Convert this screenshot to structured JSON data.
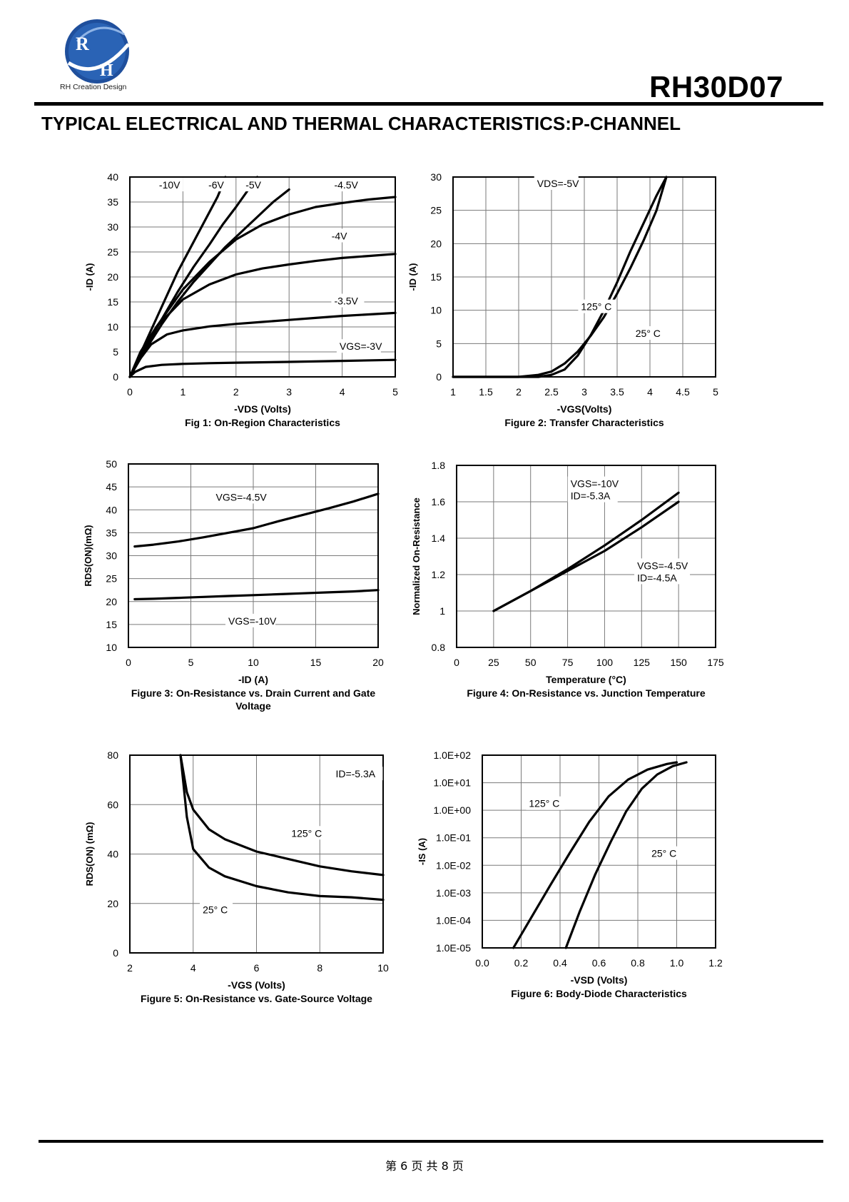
{
  "header": {
    "logo_text": "RH",
    "logo_caption": "RH Creation Design",
    "part_number": "RH30D07",
    "section_title": "TYPICAL ELECTRICAL AND THERMAL CHARACTERISTICS:P-CHANNEL"
  },
  "footer": {
    "page_text": "第 6 页 共 8 页"
  },
  "chart_data": [
    {
      "id": "fig1",
      "type": "line",
      "title": "Fig 1: On-Region Characteristics",
      "xlabel": "-VDS (Volts)",
      "ylabel": "-ID (A)",
      "xlim": [
        0,
        5
      ],
      "ylim": [
        0,
        40
      ],
      "xticks": [
        0,
        1,
        2,
        3,
        4,
        5
      ],
      "yticks": [
        0,
        5,
        10,
        15,
        20,
        25,
        30,
        35,
        40
      ],
      "grid": true,
      "series": [
        {
          "name": "-10V",
          "x": [
            0,
            0.3,
            0.6,
            0.9,
            1.2,
            1.45,
            1.65,
            1.75,
            1.8
          ],
          "y": [
            0,
            7,
            14,
            21,
            27,
            32,
            36,
            38.5,
            40
          ]
        },
        {
          "name": "-6V",
          "x": [
            0,
            0.3,
            0.6,
            0.9,
            1.2,
            1.5,
            1.75,
            2.0,
            2.2,
            2.4
          ],
          "y": [
            0,
            6,
            11.5,
            17,
            22,
            26.5,
            30.5,
            34,
            37,
            40
          ]
        },
        {
          "name": "-5V",
          "x": [
            0,
            0.3,
            0.6,
            0.9,
            1.2,
            1.5,
            1.8,
            2.1,
            2.4,
            2.7,
            3.0
          ],
          "y": [
            0,
            5.5,
            10.5,
            15,
            19,
            22.5,
            26,
            29,
            32,
            35,
            37.5
          ]
        },
        {
          "name": "-4.5V",
          "x": [
            0,
            0.2,
            0.5,
            0.8,
            1.0,
            1.5,
            2.0,
            2.5,
            3.0,
            3.5,
            4.0,
            4.5,
            5.0
          ],
          "y": [
            0,
            5,
            10,
            14.5,
            17.5,
            23,
            27.5,
            30.5,
            32.5,
            34,
            34.8,
            35.5,
            36
          ]
        },
        {
          "name": "-4V",
          "x": [
            0,
            0.2,
            0.5,
            1.0,
            1.5,
            2.0,
            2.5,
            3.0,
            3.5,
            4.0,
            4.5,
            5.0
          ],
          "y": [
            0,
            4.5,
            10,
            15.5,
            18.5,
            20.5,
            21.7,
            22.5,
            23.2,
            23.8,
            24.2,
            24.6
          ]
        },
        {
          "name": "-3.5V",
          "x": [
            0,
            0.15,
            0.4,
            0.7,
            1.0,
            1.5,
            2.0,
            2.5,
            3.0,
            3.5,
            4.0,
            4.5,
            5.0
          ],
          "y": [
            0,
            3,
            6.5,
            8.5,
            9.3,
            10.1,
            10.6,
            11,
            11.4,
            11.8,
            12.2,
            12.5,
            12.8
          ]
        },
        {
          "name": "VGS=-3V",
          "x": [
            0,
            0.1,
            0.3,
            0.6,
            1.0,
            1.5,
            2.0,
            3.0,
            4.0,
            5.0
          ],
          "y": [
            0,
            1,
            2,
            2.4,
            2.6,
            2.75,
            2.85,
            3.0,
            3.2,
            3.4
          ]
        }
      ]
    },
    {
      "id": "fig2",
      "type": "line",
      "title": "Figure 2: Transfer Characteristics",
      "xlabel": "-VGS(Volts)",
      "ylabel": "-ID (A)",
      "xlim": [
        1,
        5
      ],
      "ylim": [
        0,
        30
      ],
      "xticks": [
        1,
        1.5,
        2,
        2.5,
        3,
        3.5,
        4,
        4.5,
        5
      ],
      "yticks": [
        0,
        5,
        10,
        15,
        20,
        25,
        30
      ],
      "grid": true,
      "annotation": "VDS=-5V",
      "series": [
        {
          "name": "125° C",
          "x": [
            1,
            2,
            2.3,
            2.5,
            2.7,
            2.9,
            3.1,
            3.3,
            3.5,
            3.7,
            3.9,
            4.1,
            4.25
          ],
          "y": [
            0,
            0,
            0.3,
            0.8,
            2,
            3.8,
            6.2,
            9,
            12.5,
            16.3,
            20.4,
            25,
            30
          ]
        },
        {
          "name": "25° C",
          "x": [
            1,
            2.3,
            2.5,
            2.7,
            2.9,
            3.1,
            3.3,
            3.5,
            3.7,
            3.9,
            4.1,
            4.25
          ],
          "y": [
            0,
            0,
            0.3,
            1.1,
            3.2,
            6.3,
            10,
            14.2,
            18.8,
            23,
            27.2,
            30
          ]
        }
      ]
    },
    {
      "id": "fig3",
      "type": "line",
      "title": "Figure 3: On-Resistance vs. Drain Current and Gate Voltage",
      "xlabel": "-ID (A)",
      "ylabel": "RDS(ON)(mΩ)",
      "xlim": [
        0,
        20
      ],
      "ylim": [
        10,
        50
      ],
      "xticks": [
        0,
        5,
        10,
        15,
        20
      ],
      "yticks": [
        10,
        15,
        20,
        25,
        30,
        35,
        40,
        45,
        50
      ],
      "grid": true,
      "series": [
        {
          "name": "VGS=-4.5V",
          "x": [
            0.5,
            2,
            4,
            6,
            8,
            10,
            12,
            14,
            16,
            18,
            20
          ],
          "y": [
            32,
            32.4,
            33.1,
            34,
            35,
            36,
            37.5,
            38.9,
            40.3,
            41.8,
            43.5
          ]
        },
        {
          "name": "VGS=-10V",
          "x": [
            0.5,
            2,
            4,
            6,
            8,
            10,
            12,
            14,
            16,
            18,
            20
          ],
          "y": [
            20.5,
            20.6,
            20.8,
            21,
            21.2,
            21.4,
            21.6,
            21.8,
            22,
            22.2,
            22.5
          ]
        }
      ]
    },
    {
      "id": "fig4",
      "type": "line",
      "title": "Figure 4: On-Resistance vs. Junction Temperature",
      "xlabel": "Temperature (°C)",
      "ylabel": "Normalized On-Resistance",
      "xlim": [
        0,
        175
      ],
      "ylim": [
        0.8,
        1.8
      ],
      "xticks": [
        0,
        25,
        50,
        75,
        100,
        125,
        150,
        175
      ],
      "yticks": [
        0.8,
        1,
        1.2,
        1.4,
        1.6,
        1.8
      ],
      "grid": true,
      "series": [
        {
          "name": "VGS=-10V ID=-5.3A",
          "x": [
            25,
            50,
            75,
            100,
            125,
            150
          ],
          "y": [
            1,
            1.11,
            1.23,
            1.36,
            1.5,
            1.65
          ]
        },
        {
          "name": "VGS=-4.5V ID=-4.5A",
          "x": [
            25,
            50,
            75,
            100,
            125,
            150
          ],
          "y": [
            1,
            1.11,
            1.22,
            1.33,
            1.46,
            1.6
          ]
        }
      ]
    },
    {
      "id": "fig5",
      "type": "line",
      "title": "Figure 5: On-Resistance vs. Gate-Source Voltage",
      "xlabel": "-VGS (Volts)",
      "ylabel": "RDS(ON) (mΩ)",
      "xlim": [
        2,
        10
      ],
      "ylim": [
        0,
        80
      ],
      "xticks": [
        2,
        4,
        6,
        8,
        10
      ],
      "yticks": [
        0,
        20,
        40,
        60,
        80
      ],
      "grid": true,
      "annotation": "ID=-5.3A",
      "series": [
        {
          "name": "125° C",
          "x": [
            3.6,
            3.8,
            4,
            4.5,
            5,
            6,
            7,
            8,
            9,
            10
          ],
          "y": [
            80,
            65,
            58,
            50,
            46,
            41,
            38,
            35,
            33,
            31.5
          ]
        },
        {
          "name": "25° C",
          "x": [
            3.6,
            3.8,
            4,
            4.5,
            5,
            6,
            7,
            8,
            9,
            10
          ],
          "y": [
            80,
            55,
            42,
            34.5,
            31,
            27,
            24.5,
            23,
            22.5,
            21.5
          ]
        }
      ]
    },
    {
      "id": "fig6",
      "type": "line",
      "title": "Figure 6: Body-Diode Characteristics",
      "xlabel": "-VSD (Volts)",
      "ylabel": "-IS (A)",
      "xlim": [
        0,
        1.2
      ],
      "ylim": [
        1e-05,
        100
      ],
      "yscale": "log",
      "xticks": [
        0,
        0.2,
        0.4,
        0.6,
        0.8,
        1.0,
        1.2
      ],
      "xtick_labels": [
        "0.0",
        "0.2",
        "0.4",
        "0.6",
        "0.8",
        "1.0",
        "1.2"
      ],
      "yticks": [
        1e-05,
        0.0001,
        0.001,
        0.01,
        0.1,
        1,
        10,
        100
      ],
      "ytick_labels": [
        "1.0E-05",
        "1.0E-04",
        "1.0E-03",
        "1.0E-02",
        "1.0E-01",
        "1.0E+00",
        "1.0E+01",
        "1.0E+02"
      ],
      "grid": true,
      "series": [
        {
          "name": "125° C",
          "x": [
            0.16,
            0.25,
            0.35,
            0.45,
            0.55,
            0.65,
            0.75,
            0.85,
            0.95,
            1.0
          ],
          "y": [
            1e-05,
            0.00012,
            0.0019,
            0.028,
            0.38,
            3.2,
            13,
            30,
            48,
            55
          ]
        },
        {
          "name": "25° C",
          "x": [
            0.43,
            0.5,
            0.58,
            0.66,
            0.74,
            0.82,
            0.9,
            0.98,
            1.05
          ],
          "y": [
            1e-05,
            0.0002,
            0.0045,
            0.07,
            0.9,
            6,
            20,
            40,
            55
          ]
        }
      ]
    }
  ]
}
